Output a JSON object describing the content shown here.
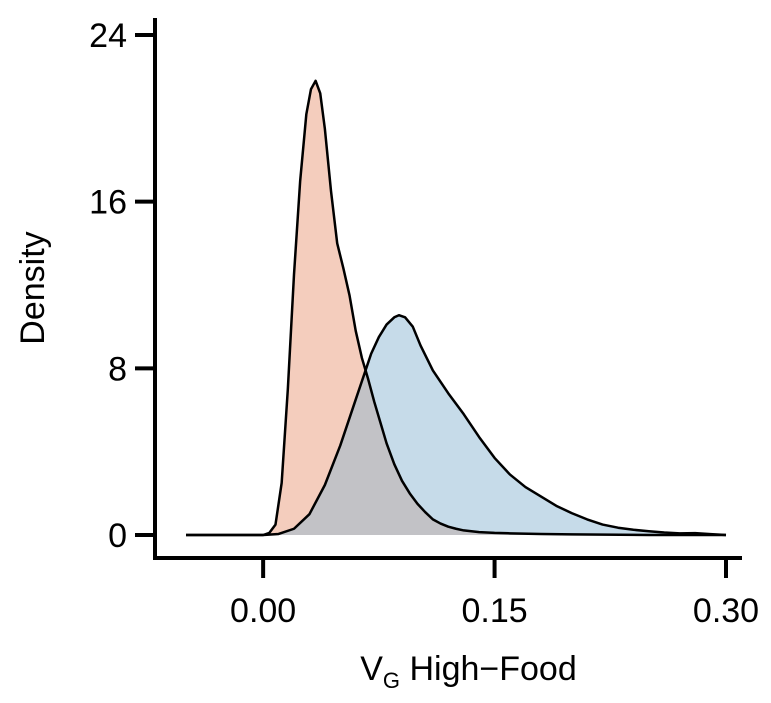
{
  "chart_data": {
    "type": "area",
    "title": "",
    "xlabel": {
      "main": "V",
      "subscript": "G",
      "rest": " High−Food"
    },
    "ylabel": "Density",
    "xlim": [
      -0.05,
      0.3
    ],
    "ylim": [
      0,
      24
    ],
    "x_ticks": [
      0.0,
      0.15,
      0.3
    ],
    "x_tick_labels": [
      "0.00",
      "0.15",
      "0.30"
    ],
    "y_ticks": [
      0,
      8,
      16,
      24
    ],
    "y_tick_labels": [
      "0",
      "8",
      "16",
      "24"
    ],
    "grid": false,
    "legend": "none",
    "overlap_color": "#c2c2c6",
    "series": [
      {
        "fill": "#f4cdbd",
        "stroke": "#000000",
        "points": [
          [
            -0.05,
            0.0
          ],
          [
            0.0,
            0.0
          ],
          [
            0.004,
            0.1
          ],
          [
            0.008,
            0.5
          ],
          [
            0.012,
            2.5
          ],
          [
            0.016,
            7.0
          ],
          [
            0.02,
            12.5
          ],
          [
            0.024,
            17.0
          ],
          [
            0.028,
            20.2
          ],
          [
            0.031,
            21.4
          ],
          [
            0.034,
            21.8
          ],
          [
            0.037,
            21.2
          ],
          [
            0.04,
            19.5
          ],
          [
            0.044,
            16.5
          ],
          [
            0.048,
            14.0
          ],
          [
            0.052,
            12.8
          ],
          [
            0.056,
            11.5
          ],
          [
            0.06,
            9.8
          ],
          [
            0.064,
            8.5
          ],
          [
            0.068,
            7.5
          ],
          [
            0.072,
            6.4
          ],
          [
            0.076,
            5.4
          ],
          [
            0.08,
            4.4
          ],
          [
            0.085,
            3.4
          ],
          [
            0.09,
            2.6
          ],
          [
            0.095,
            2.0
          ],
          [
            0.1,
            1.5
          ],
          [
            0.105,
            1.1
          ],
          [
            0.11,
            0.75
          ],
          [
            0.115,
            0.55
          ],
          [
            0.12,
            0.4
          ],
          [
            0.125,
            0.3
          ],
          [
            0.13,
            0.22
          ],
          [
            0.14,
            0.14
          ],
          [
            0.15,
            0.1
          ],
          [
            0.16,
            0.08
          ],
          [
            0.18,
            0.05
          ],
          [
            0.2,
            0.03
          ],
          [
            0.25,
            0.0
          ],
          [
            0.3,
            0.0
          ]
        ]
      },
      {
        "fill": "#c6dbe9",
        "stroke": "#000000",
        "points": [
          [
            -0.05,
            0.0
          ],
          [
            0.0,
            0.0
          ],
          [
            0.01,
            0.05
          ],
          [
            0.02,
            0.3
          ],
          [
            0.03,
            1.0
          ],
          [
            0.04,
            2.4
          ],
          [
            0.05,
            4.3
          ],
          [
            0.06,
            6.5
          ],
          [
            0.065,
            7.6
          ],
          [
            0.07,
            8.7
          ],
          [
            0.075,
            9.5
          ],
          [
            0.08,
            10.1
          ],
          [
            0.085,
            10.45
          ],
          [
            0.088,
            10.55
          ],
          [
            0.092,
            10.45
          ],
          [
            0.097,
            10.0
          ],
          [
            0.102,
            9.1
          ],
          [
            0.11,
            7.9
          ],
          [
            0.12,
            6.8
          ],
          [
            0.13,
            5.8
          ],
          [
            0.14,
            4.7
          ],
          [
            0.15,
            3.7
          ],
          [
            0.16,
            2.9
          ],
          [
            0.17,
            2.3
          ],
          [
            0.18,
            1.85
          ],
          [
            0.19,
            1.4
          ],
          [
            0.2,
            1.05
          ],
          [
            0.21,
            0.75
          ],
          [
            0.22,
            0.5
          ],
          [
            0.23,
            0.35
          ],
          [
            0.24,
            0.25
          ],
          [
            0.25,
            0.18
          ],
          [
            0.26,
            0.12
          ],
          [
            0.27,
            0.08
          ],
          [
            0.28,
            0.09
          ],
          [
            0.29,
            0.04
          ],
          [
            0.3,
            0.0
          ]
        ]
      }
    ]
  }
}
